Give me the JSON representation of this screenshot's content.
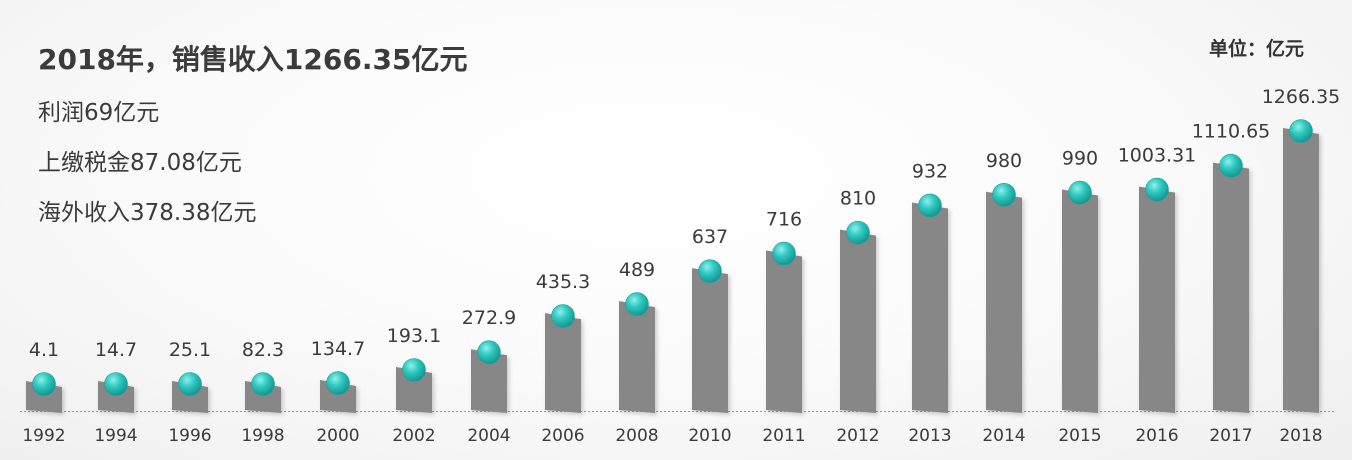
{
  "header": {
    "headline": "2018年，销售收入1266.35亿元",
    "unit": "单位：亿元"
  },
  "info": [
    "利润69亿元",
    "上缴税金87.08亿元",
    "海外收入378.38亿元"
  ],
  "colors": {
    "bar": "#878787",
    "marker": "#20bdb5",
    "text": "#3b3b3b"
  },
  "chart_data": {
    "type": "bar",
    "title": "",
    "xlabel": "",
    "ylabel": "",
    "categories": [
      "1992",
      "1994",
      "1996",
      "1998",
      "2000",
      "2002",
      "2004",
      "2006",
      "2008",
      "2010",
      "2011",
      "2012",
      "2013",
      "2014",
      "2015",
      "2016",
      "2017",
      "2018"
    ],
    "values": [
      4.1,
      14.7,
      25.1,
      82.3,
      134.7,
      193.1,
      272.9,
      435.3,
      489,
      637,
      716,
      810,
      932,
      980,
      990,
      1003.31,
      1110.65,
      1266.35
    ],
    "value_labels": [
      "4.1",
      "14.7",
      "25.1",
      "82.3",
      "134.7",
      "193.1",
      "272.9",
      "435.3",
      "489",
      "637",
      "716",
      "810",
      "932",
      "980",
      "990",
      "1003.31",
      "1110.65",
      "1266.35"
    ],
    "grid": false,
    "legend": "none"
  }
}
